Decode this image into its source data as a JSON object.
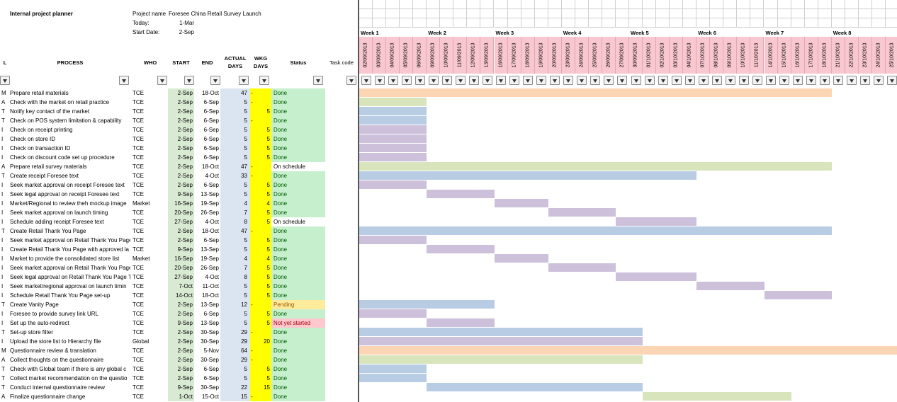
{
  "header": {
    "title": "Internal project planner",
    "project_name_label": "Project name",
    "project_name": "Foresee China Retail Survey Launch",
    "today_label": "Today:",
    "today": "1-Mar",
    "start_label": "Start Date:",
    "start": "2-Sep"
  },
  "columns": {
    "level": "L",
    "process": "PROCESS",
    "who": "WHO",
    "start": "START",
    "end": "END",
    "actual_days": "ACTUAL DAYS",
    "wkg_days": "WKG DAYS",
    "status": "Status",
    "task_code": "Task code"
  },
  "weeks": [
    "Week 1",
    "Week 2",
    "Week 3",
    "Week 4",
    "Week 5",
    "Week 6",
    "Week 7",
    "Week 8"
  ],
  "dates": [
    "02/09/2013",
    "03/09/2013",
    "04/09/2013",
    "05/09/2013",
    "06/09/2013",
    "09/09/2013",
    "10/09/2013",
    "11/09/2013",
    "12/09/2013",
    "13/09/2013",
    "16/09/2013",
    "17/09/2013",
    "18/09/2013",
    "19/09/2013",
    "20/09/2013",
    "23/09/2013",
    "24/09/2013",
    "25/09/2013",
    "26/09/2013",
    "27/09/2013",
    "30/09/2013",
    "01/10/2013",
    "02/10/2013",
    "03/10/2013",
    "04/10/2013",
    "07/10/2013",
    "08/10/2013",
    "09/10/2013",
    "10/10/2013",
    "11/10/2013",
    "14/10/2013",
    "15/10/2013",
    "16/10/2013",
    "17/10/2013",
    "18/10/2013",
    "21/10/2013",
    "22/10/2013",
    "23/10/2013",
    "24/10/2013",
    "25/10/2013"
  ],
  "colors": {
    "orange": "#fcd5b4",
    "green": "#d8e4bc",
    "blue": "#b8cce4",
    "purple": "#ccc0da",
    "done": "#c6efce",
    "pending": "#ffeb9c",
    "not_started": "#ffc7ce",
    "date_header": "#f8c7cf"
  },
  "rows": [
    {
      "code": "M",
      "process": "Prepare retail materials",
      "who": "TCE",
      "start": "2-Sep",
      "end": "18-Oct",
      "actual": "47",
      "wkg": "-",
      "status": "Done",
      "status_color": "#c6efce",
      "bar": [
        0,
        35
      ],
      "bar_color": "#fcd5b4"
    },
    {
      "code": "A",
      "process": "Check with the market on retail practice",
      "who": "TCE",
      "start": "2-Sep",
      "end": "6-Sep",
      "actual": "5",
      "wkg": "-",
      "status": "Done",
      "status_color": "#c6efce",
      "bar": [
        0,
        5
      ],
      "bar_color": "#d8e4bc"
    },
    {
      "code": "T",
      "process": "Notify key contact of the market",
      "who": "TCE",
      "start": "2-Sep",
      "end": "6-Sep",
      "actual": "5",
      "wkg": "5",
      "status": "Done",
      "status_color": "#c6efce",
      "bar": [
        0,
        5
      ],
      "bar_color": "#b8cce4"
    },
    {
      "code": "T",
      "process": "Check on POS system limitation & capability",
      "who": "TCE",
      "start": "2-Sep",
      "end": "6-Sep",
      "actual": "5",
      "wkg": "-",
      "status": "Done",
      "status_color": "#c6efce",
      "bar": [
        0,
        5
      ],
      "bar_color": "#b8cce4"
    },
    {
      "code": "I",
      "process": "Check on receipt printing",
      "who": "TCE",
      "start": "2-Sep",
      "end": "6-Sep",
      "actual": "5",
      "wkg": "5",
      "status": "Done",
      "status_color": "#c6efce",
      "bar": [
        0,
        5
      ],
      "bar_color": "#ccc0da"
    },
    {
      "code": "I",
      "process": "Check on store ID",
      "who": "TCE",
      "start": "2-Sep",
      "end": "6-Sep",
      "actual": "5",
      "wkg": "5",
      "status": "Done",
      "status_color": "#c6efce",
      "bar": [
        0,
        5
      ],
      "bar_color": "#ccc0da"
    },
    {
      "code": "I",
      "process": "Check on transaction ID",
      "who": "TCE",
      "start": "2-Sep",
      "end": "6-Sep",
      "actual": "5",
      "wkg": "5",
      "status": "Done",
      "status_color": "#c6efce",
      "bar": [
        0,
        5
      ],
      "bar_color": "#ccc0da"
    },
    {
      "code": "I",
      "process": "Check on discount code set up procedure",
      "who": "TCE",
      "start": "2-Sep",
      "end": "6-Sep",
      "actual": "5",
      "wkg": "5",
      "status": "Done",
      "status_color": "#c6efce",
      "bar": [
        0,
        5
      ],
      "bar_color": "#ccc0da"
    },
    {
      "code": "A",
      "process": "Prepare retail survey materials",
      "who": "TCE",
      "start": "2-Sep",
      "end": "18-Oct",
      "actual": "47",
      "wkg": "-",
      "status": "On schedule",
      "status_color": "#ffffff",
      "bar": [
        0,
        35
      ],
      "bar_color": "#d8e4bc"
    },
    {
      "code": "T",
      "process": "Create receipt Foresee text",
      "who": "TCE",
      "start": "2-Sep",
      "end": "4-Oct",
      "actual": "33",
      "wkg": "-",
      "status": "Done",
      "status_color": "#c6efce",
      "bar": [
        0,
        25
      ],
      "bar_color": "#b8cce4"
    },
    {
      "code": "I",
      "process": "Seek market approval on receipt Foresee text",
      "who": "TCE",
      "start": "2-Sep",
      "end": "6-Sep",
      "actual": "5",
      "wkg": "5",
      "status": "Done",
      "status_color": "#c6efce",
      "bar": [
        0,
        5
      ],
      "bar_color": "#ccc0da"
    },
    {
      "code": "I",
      "process": "Seek legal approval on receipt Foresee text",
      "who": "TCE",
      "start": "9-Sep",
      "end": "13-Sep",
      "actual": "5",
      "wkg": "5",
      "status": "Done",
      "status_color": "#c6efce",
      "bar": [
        5,
        10
      ],
      "bar_color": "#ccc0da"
    },
    {
      "code": "I",
      "process": "Market/Regional to review theh mockup image",
      "who": "Market",
      "start": "16-Sep",
      "end": "19-Sep",
      "actual": "4",
      "wkg": "4",
      "status": "Done",
      "status_color": "#c6efce",
      "bar": [
        10,
        14
      ],
      "bar_color": "#ccc0da"
    },
    {
      "code": "I",
      "process": "Seek market approval on launch timing",
      "who": "TCE",
      "start": "20-Sep",
      "end": "26-Sep",
      "actual": "7",
      "wkg": "5",
      "status": "Done",
      "status_color": "#c6efce",
      "bar": [
        14,
        19
      ],
      "bar_color": "#ccc0da"
    },
    {
      "code": "I",
      "process": "Schedule adding receipt Foresee text",
      "who": "TCE",
      "start": "27-Sep",
      "end": "4-Oct",
      "actual": "8",
      "wkg": "5",
      "status": "On schedule",
      "status_color": "#ffffff",
      "bar": [
        19,
        25
      ],
      "bar_color": "#ccc0da"
    },
    {
      "code": "T",
      "process": "Create Retail Thank You Page",
      "who": "TCE",
      "start": "2-Sep",
      "end": "18-Oct",
      "actual": "47",
      "wkg": "-",
      "status": "Done",
      "status_color": "#c6efce",
      "bar": [
        0,
        35
      ],
      "bar_color": "#b8cce4"
    },
    {
      "code": "I",
      "process": "Seek market approval on Retail Thank You Page",
      "who": "TCE",
      "start": "2-Sep",
      "end": "6-Sep",
      "actual": "5",
      "wkg": "5",
      "status": "Done",
      "status_color": "#c6efce",
      "bar": [
        0,
        5
      ],
      "bar_color": "#ccc0da"
    },
    {
      "code": "I",
      "process": "Create Retail Thank You Page with approved la",
      "who": "TCE",
      "start": "9-Sep",
      "end": "13-Sep",
      "actual": "5",
      "wkg": "5",
      "status": "Done",
      "status_color": "#c6efce",
      "bar": [
        5,
        10
      ],
      "bar_color": "#ccc0da"
    },
    {
      "code": "I",
      "process": "Market to provide the consolidated store list",
      "who": "Market",
      "start": "16-Sep",
      "end": "19-Sep",
      "actual": "4",
      "wkg": "4",
      "status": "Done",
      "status_color": "#c6efce",
      "bar": [
        10,
        14
      ],
      "bar_color": "#ccc0da"
    },
    {
      "code": "I",
      "process": "Seek market approval on Retail Thank You Page",
      "who": "TCE",
      "start": "20-Sep",
      "end": "26-Sep",
      "actual": "7",
      "wkg": "5",
      "status": "Done",
      "status_color": "#c6efce",
      "bar": [
        14,
        19
      ],
      "bar_color": "#ccc0da"
    },
    {
      "code": "I",
      "process": "Seek legal approval on Retail Thank You Page T",
      "who": "TCE",
      "start": "27-Sep",
      "end": "4-Oct",
      "actual": "8",
      "wkg": "5",
      "status": "Done",
      "status_color": "#c6efce",
      "bar": [
        19,
        25
      ],
      "bar_color": "#ccc0da"
    },
    {
      "code": "I",
      "process": "Seek market/regional approval on launch timin",
      "who": "TCE",
      "start": "7-Oct",
      "end": "11-Oct",
      "actual": "5",
      "wkg": "5",
      "status": "Done",
      "status_color": "#c6efce",
      "bar": [
        25,
        30
      ],
      "bar_color": "#ccc0da"
    },
    {
      "code": "I",
      "process": "Schedule Retail Thank You Page set-up",
      "who": "TCE",
      "start": "14-Oct",
      "end": "18-Oct",
      "actual": "5",
      "wkg": "5",
      "status": "Done",
      "status_color": "#c6efce",
      "bar": [
        30,
        35
      ],
      "bar_color": "#ccc0da"
    },
    {
      "code": "T",
      "process": "Create Vanity Page",
      "who": "TCE",
      "start": "2-Sep",
      "end": "13-Sep",
      "actual": "12",
      "wkg": "-",
      "status": "Pending",
      "status_color": "#ffeb9c",
      "bar": [
        0,
        10
      ],
      "bar_color": "#b8cce4"
    },
    {
      "code": "I",
      "process": "Foresee to provide survey link URL",
      "who": "TCE",
      "start": "2-Sep",
      "end": "6-Sep",
      "actual": "5",
      "wkg": "5",
      "status": "Done",
      "status_color": "#c6efce",
      "bar": [
        0,
        5
      ],
      "bar_color": "#ccc0da"
    },
    {
      "code": "I",
      "process": "Set up the auto-redirect",
      "who": "TCE",
      "start": "9-Sep",
      "end": "13-Sep",
      "actual": "5",
      "wkg": "5",
      "status": "Not yet started",
      "status_color": "#ffc7ce",
      "bar": [
        5,
        10
      ],
      "bar_color": "#ccc0da"
    },
    {
      "code": "T",
      "process": "Set-up store filter",
      "who": "TCE",
      "start": "2-Sep",
      "end": "30-Sep",
      "actual": "29",
      "wkg": "-",
      "status": "Done",
      "status_color": "#c6efce",
      "bar": [
        0,
        21
      ],
      "bar_color": "#b8cce4"
    },
    {
      "code": "I",
      "process": "Upload the store list to Hierarchy file",
      "who": "Global",
      "start": "2-Sep",
      "end": "30-Sep",
      "actual": "29",
      "wkg": "20",
      "status": "Done",
      "status_color": "#c6efce",
      "bar": [
        0,
        21
      ],
      "bar_color": "#ccc0da"
    },
    {
      "code": "M",
      "process": "Questionnaire review & translation",
      "who": "TCE",
      "start": "2-Sep",
      "end": "5-Nov",
      "actual": "64",
      "wkg": "-",
      "status": "Done",
      "status_color": "#c6efce",
      "bar": [
        0,
        40
      ],
      "bar_color": "#fcd5b4"
    },
    {
      "code": "A",
      "process": "Collect thoughts on the questionnaire",
      "who": "TCE",
      "start": "2-Sep",
      "end": "30-Sep",
      "actual": "29",
      "wkg": "-",
      "status": "Done",
      "status_color": "#c6efce",
      "bar": [
        0,
        21
      ],
      "bar_color": "#d8e4bc"
    },
    {
      "code": "T",
      "process": "Check with Global team if there is any global c",
      "who": "TCE",
      "start": "2-Sep",
      "end": "6-Sep",
      "actual": "5",
      "wkg": "5",
      "status": "Done",
      "status_color": "#c6efce",
      "bar": [
        0,
        5
      ],
      "bar_color": "#b8cce4"
    },
    {
      "code": "T",
      "process": "Collect market recommendation on the questio",
      "who": "TCE",
      "start": "2-Sep",
      "end": "6-Sep",
      "actual": "5",
      "wkg": "5",
      "status": "Done",
      "status_color": "#c6efce",
      "bar": [
        0,
        5
      ],
      "bar_color": "#b8cce4"
    },
    {
      "code": "T",
      "process": "Conduct internal questionnaire review",
      "who": "TCE",
      "start": "9-Sep",
      "end": "30-Sep",
      "actual": "22",
      "wkg": "15",
      "status": "Done",
      "status_color": "#c6efce",
      "bar": [
        5,
        21
      ],
      "bar_color": "#b8cce4"
    },
    {
      "code": "A",
      "process": "Finalize questionnaire change",
      "who": "TCE",
      "start": "1-Oct",
      "end": "15-Oct",
      "actual": "15",
      "wkg": "-",
      "status": "Done",
      "status_color": "#c6efce",
      "bar": [
        21,
        32
      ],
      "bar_color": "#d8e4bc"
    }
  ]
}
